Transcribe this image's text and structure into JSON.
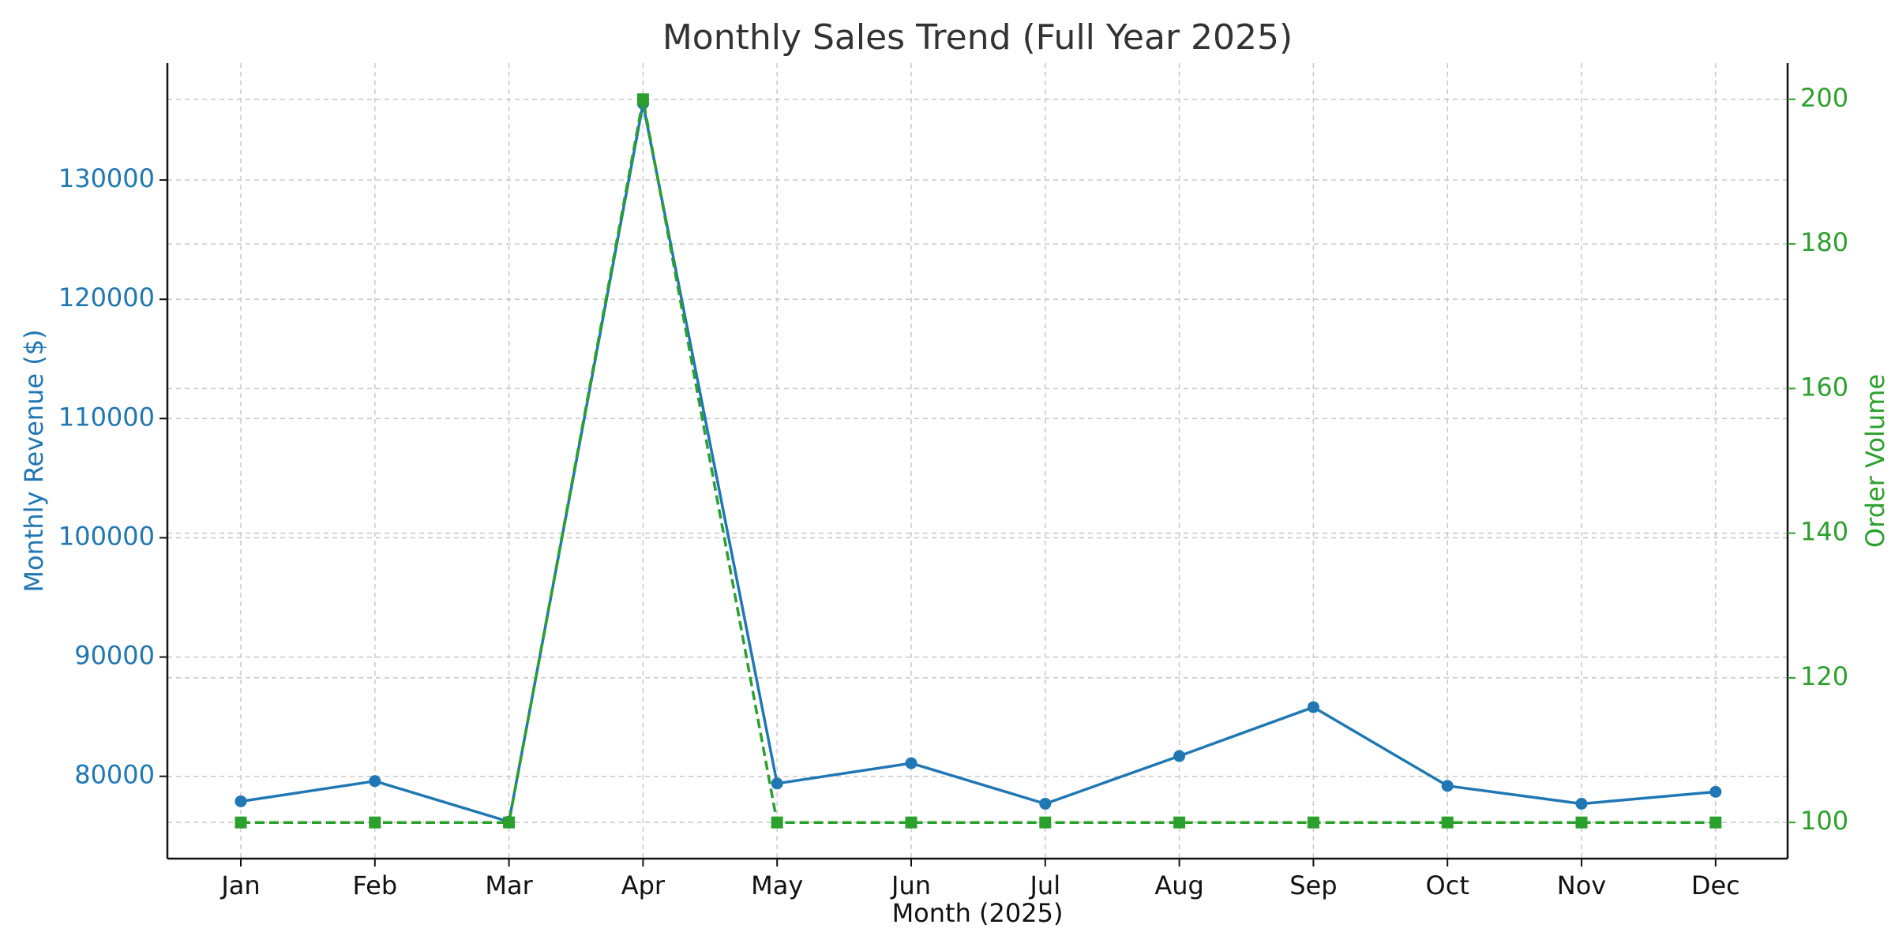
{
  "chart_data": {
    "type": "line",
    "title": "Monthly Sales Trend (Full Year 2025)",
    "xlabel": "Month (2025)",
    "categories": [
      "Jan",
      "Feb",
      "Mar",
      "Apr",
      "May",
      "Jun",
      "Jul",
      "Aug",
      "Sep",
      "Oct",
      "Nov",
      "Dec"
    ],
    "grid": true,
    "left_axis": {
      "label": "Monthly Revenue ($)",
      "color": "#1f77b4",
      "ticks": [
        80000,
        90000,
        100000,
        110000,
        120000,
        130000
      ],
      "ylim": [
        73100,
        139800
      ]
    },
    "right_axis": {
      "label": "Order Volume",
      "color": "#2ca02c",
      "ticks": [
        100,
        120,
        140,
        160,
        180,
        200
      ],
      "ylim": [
        95,
        205
      ]
    },
    "series": [
      {
        "axis": "left",
        "color": "#1f77b4",
        "marker": "circle",
        "line_style": "solid",
        "values": [
          77900,
          79600,
          76200,
          136400,
          79400,
          81100,
          77700,
          81700,
          85800,
          79200,
          77700,
          78700
        ]
      },
      {
        "axis": "right",
        "color": "#2ca02c",
        "marker": "square",
        "line_style": "dashed",
        "values": [
          100,
          100,
          100,
          200,
          100,
          100,
          100,
          100,
          100,
          100,
          100,
          100
        ]
      }
    ]
  }
}
